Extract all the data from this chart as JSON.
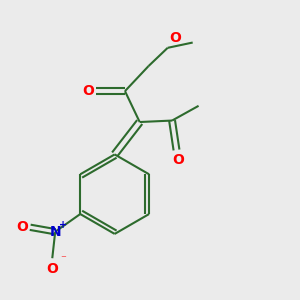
{
  "background_color": "#ebebeb",
  "bond_color": "#2d6b2d",
  "oxygen_color": "#ff0000",
  "nitrogen_color": "#0000cc",
  "line_width": 1.5,
  "figsize": [
    3.0,
    3.0
  ],
  "dpi": 100,
  "xlim": [
    0,
    10
  ],
  "ylim": [
    0,
    10
  ]
}
